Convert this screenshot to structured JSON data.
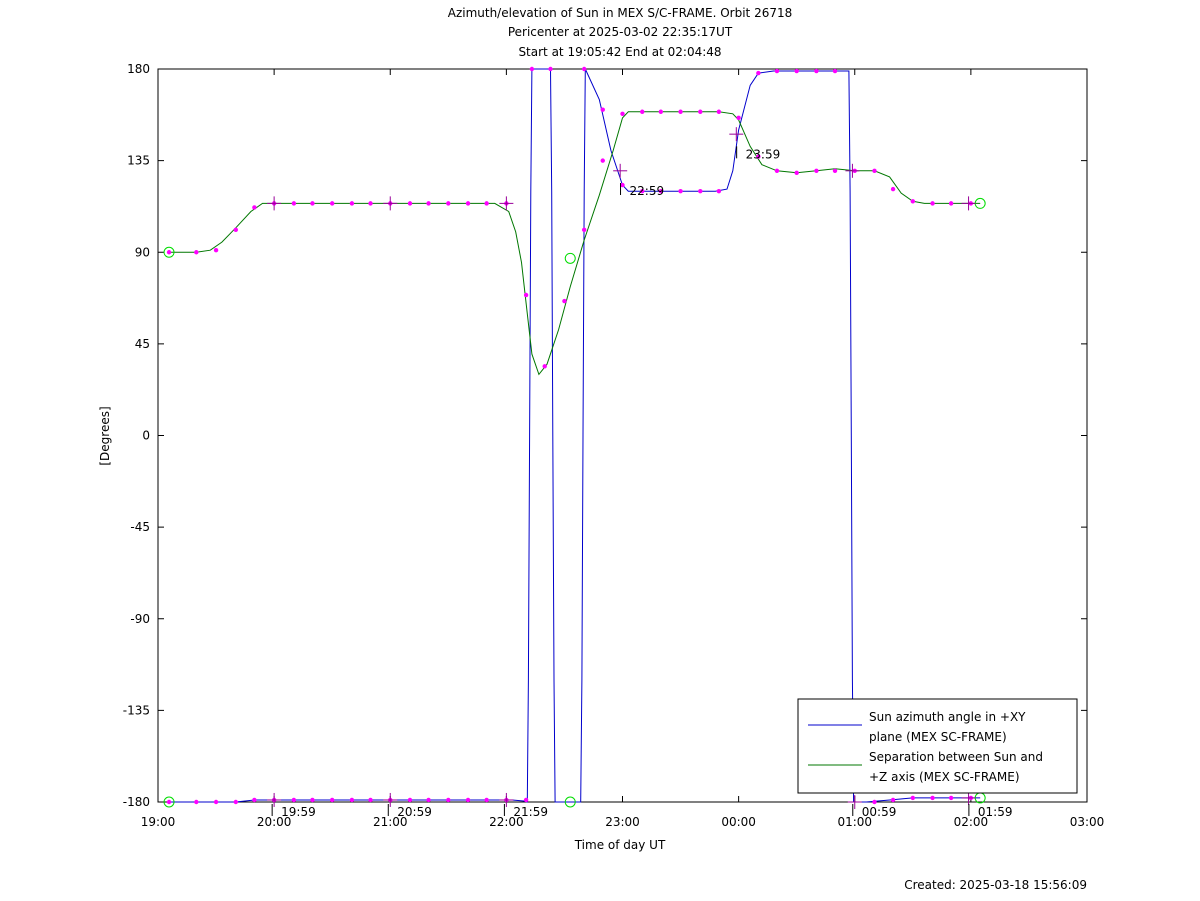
{
  "title_lines": [
    "Azimuth/elevation of Sun in MEX S/C-FRAME.  Orbit 26718",
    "Pericenter at 2025-03-02 22:35:17UT",
    "Start at 19:05:42 End at 02:04:48"
  ],
  "created": "Created: 2025-03-18 15:56:09",
  "chart_data": {
    "type": "line",
    "xlabel": "Time of day UT",
    "ylabel": "[Degrees]",
    "x_unit": "hours since 19:00 UT",
    "xlim": [
      0,
      8
    ],
    "ylim": [
      -180,
      180
    ],
    "grid": false,
    "legend_position": "bottom-right",
    "x_ticks": [
      {
        "x": 0,
        "label": "19:00"
      },
      {
        "x": 1,
        "label": "20:00"
      },
      {
        "x": 2,
        "label": "21:00"
      },
      {
        "x": 3,
        "label": "22:00"
      },
      {
        "x": 4,
        "label": "23:00"
      },
      {
        "x": 5,
        "label": "00:00"
      },
      {
        "x": 6,
        "label": "01:00"
      },
      {
        "x": 7,
        "label": "02:00"
      },
      {
        "x": 8,
        "label": "03:00"
      }
    ],
    "y_ticks": [
      {
        "y": 180,
        "label": "180"
      },
      {
        "y": 135,
        "label": "135"
      },
      {
        "y": 90,
        "label": "90"
      },
      {
        "y": 45,
        "label": "45"
      },
      {
        "y": 0,
        "label": "0"
      },
      {
        "y": -45,
        "label": "-45"
      },
      {
        "y": -90,
        "label": "-90"
      },
      {
        "y": -135,
        "label": "-135"
      },
      {
        "y": -180,
        "label": "-180"
      }
    ],
    "series": [
      {
        "name": "Sun azimuth angle in +XY plane (MEX SC-FRAME)",
        "legend_lines": [
          "Sun azimuth angle in +XY",
          "plane (MEX SC-FRAME)"
        ],
        "color": "#0000cc",
        "points": [
          [
            0.095,
            -180
          ],
          [
            0.33,
            -180
          ],
          [
            0.5,
            -180
          ],
          [
            0.67,
            -180
          ],
          [
            0.83,
            -179
          ],
          [
            1.0,
            -179
          ],
          [
            1.5,
            -179
          ],
          [
            2.0,
            -179
          ],
          [
            2.5,
            -179
          ],
          [
            2.9,
            -179
          ],
          [
            3.05,
            -179
          ],
          [
            3.15,
            -179.5
          ],
          [
            3.18,
            -180
          ],
          [
            3.19,
            -120
          ],
          [
            3.2,
            0
          ],
          [
            3.21,
            120
          ],
          [
            3.22,
            180
          ],
          [
            3.38,
            180
          ],
          [
            3.39,
            120
          ],
          [
            3.4,
            0
          ],
          [
            3.41,
            -120
          ],
          [
            3.42,
            -180
          ],
          [
            3.64,
            -180
          ],
          [
            3.65,
            -120
          ],
          [
            3.66,
            0
          ],
          [
            3.67,
            120
          ],
          [
            3.68,
            180
          ],
          [
            3.8,
            165
          ],
          [
            3.9,
            140
          ],
          [
            4.0,
            123
          ],
          [
            4.05,
            120
          ],
          [
            4.2,
            120
          ],
          [
            4.5,
            120
          ],
          [
            4.8,
            120
          ],
          [
            4.9,
            121
          ],
          [
            4.95,
            130
          ],
          [
            5.0,
            150
          ],
          [
            5.1,
            172
          ],
          [
            5.17,
            178
          ],
          [
            5.3,
            179
          ],
          [
            5.5,
            179
          ],
          [
            5.8,
            179
          ],
          [
            5.95,
            179
          ],
          [
            5.96,
            120
          ],
          [
            5.97,
            0
          ],
          [
            5.98,
            -120
          ],
          [
            5.99,
            -180
          ],
          [
            6.1,
            -180
          ],
          [
            6.3,
            -179
          ],
          [
            6.5,
            -178
          ],
          [
            6.7,
            -178
          ],
          [
            6.9,
            -178
          ],
          [
            7.08,
            -178
          ]
        ],
        "markers": [
          [
            0.095,
            -180
          ],
          [
            0.33,
            -180
          ],
          [
            0.5,
            -180
          ],
          [
            0.67,
            -180
          ],
          [
            0.83,
            -179
          ],
          [
            1.0,
            -179
          ],
          [
            1.17,
            -179
          ],
          [
            1.33,
            -179
          ],
          [
            1.5,
            -179
          ],
          [
            1.67,
            -179
          ],
          [
            1.83,
            -179
          ],
          [
            2.0,
            -179
          ],
          [
            2.17,
            -179
          ],
          [
            2.33,
            -179
          ],
          [
            2.5,
            -179
          ],
          [
            2.67,
            -179
          ],
          [
            2.83,
            -179
          ],
          [
            3.0,
            -179
          ],
          [
            3.17,
            -179
          ],
          [
            3.22,
            180
          ],
          [
            3.38,
            180
          ],
          [
            3.67,
            180
          ],
          [
            3.83,
            160
          ],
          [
            4.0,
            123
          ],
          [
            4.17,
            120
          ],
          [
            4.33,
            120
          ],
          [
            4.5,
            120
          ],
          [
            4.67,
            120
          ],
          [
            4.83,
            120
          ],
          [
            5.17,
            178
          ],
          [
            5.33,
            179
          ],
          [
            5.5,
            179
          ],
          [
            5.67,
            179
          ],
          [
            5.83,
            179
          ],
          [
            6.17,
            -180
          ],
          [
            6.33,
            -179
          ],
          [
            6.5,
            -178
          ],
          [
            6.67,
            -178
          ],
          [
            6.83,
            -178
          ],
          [
            7.0,
            -178
          ]
        ],
        "start_end": [
          [
            0.095,
            -180
          ],
          [
            3.55,
            -180
          ],
          [
            7.08,
            -178
          ]
        ]
      },
      {
        "name": "Separation between Sun and +Z axis (MEX SC-FRAME)",
        "legend_lines": [
          "Separation between Sun and",
          "+Z axis (MEX SC-FRAME)"
        ],
        "color": "#007700",
        "points": [
          [
            0.095,
            90
          ],
          [
            0.2,
            90
          ],
          [
            0.33,
            90
          ],
          [
            0.45,
            91
          ],
          [
            0.55,
            95
          ],
          [
            0.67,
            102
          ],
          [
            0.8,
            110
          ],
          [
            0.9,
            114
          ],
          [
            1.0,
            114
          ],
          [
            1.5,
            114
          ],
          [
            2.0,
            114
          ],
          [
            2.5,
            114
          ],
          [
            2.9,
            114
          ],
          [
            3.02,
            110
          ],
          [
            3.08,
            100
          ],
          [
            3.13,
            85
          ],
          [
            3.17,
            65
          ],
          [
            3.22,
            40
          ],
          [
            3.28,
            30
          ],
          [
            3.35,
            35
          ],
          [
            3.45,
            52
          ],
          [
            3.55,
            73
          ],
          [
            3.67,
            96
          ],
          [
            3.8,
            118
          ],
          [
            3.92,
            140
          ],
          [
            4.0,
            156
          ],
          [
            4.05,
            159
          ],
          [
            4.2,
            159
          ],
          [
            4.5,
            159
          ],
          [
            4.83,
            159
          ],
          [
            4.95,
            158
          ],
          [
            5.0,
            155
          ],
          [
            5.1,
            142
          ],
          [
            5.2,
            133
          ],
          [
            5.33,
            130
          ],
          [
            5.5,
            129
          ],
          [
            5.67,
            130
          ],
          [
            5.83,
            131
          ],
          [
            6.0,
            130
          ],
          [
            6.17,
            130
          ],
          [
            6.3,
            127
          ],
          [
            6.4,
            119
          ],
          [
            6.5,
            115
          ],
          [
            6.6,
            114
          ],
          [
            6.83,
            114
          ],
          [
            7.08,
            114
          ]
        ],
        "markers": [
          [
            0.095,
            90
          ],
          [
            0.33,
            90
          ],
          [
            0.5,
            91
          ],
          [
            0.67,
            101
          ],
          [
            0.83,
            112
          ],
          [
            1.0,
            114
          ],
          [
            1.17,
            114
          ],
          [
            1.33,
            114
          ],
          [
            1.5,
            114
          ],
          [
            1.67,
            114
          ],
          [
            1.83,
            114
          ],
          [
            2.0,
            114
          ],
          [
            2.17,
            114
          ],
          [
            2.33,
            114
          ],
          [
            2.5,
            114
          ],
          [
            2.67,
            114
          ],
          [
            2.83,
            114
          ],
          [
            3.0,
            114
          ],
          [
            3.17,
            69
          ],
          [
            3.33,
            34
          ],
          [
            3.5,
            66
          ],
          [
            3.67,
            101
          ],
          [
            3.83,
            135
          ],
          [
            4.0,
            158
          ],
          [
            4.17,
            159
          ],
          [
            4.33,
            159
          ],
          [
            4.5,
            159
          ],
          [
            4.67,
            159
          ],
          [
            4.83,
            159
          ],
          [
            5.0,
            156
          ],
          [
            5.17,
            137
          ],
          [
            5.33,
            130
          ],
          [
            5.5,
            129
          ],
          [
            5.67,
            130
          ],
          [
            5.83,
            130
          ],
          [
            6.0,
            130
          ],
          [
            6.17,
            130
          ],
          [
            6.33,
            121
          ],
          [
            6.5,
            115
          ],
          [
            6.67,
            114
          ],
          [
            6.83,
            114
          ],
          [
            7.0,
            114
          ]
        ],
        "start_end": [
          [
            0.095,
            90
          ],
          [
            3.55,
            87
          ],
          [
            7.08,
            114
          ]
        ]
      }
    ],
    "hour_ticks": [
      {
        "x": 1.0,
        "y": -179
      },
      {
        "x": 2.0,
        "y": -179
      },
      {
        "x": 3.0,
        "y": -179
      },
      {
        "x": 6.0,
        "y": -180
      },
      {
        "x": 6.98,
        "y": -178
      },
      {
        "x": 1.0,
        "y": 114
      },
      {
        "x": 2.0,
        "y": 114
      },
      {
        "x": 3.0,
        "y": 114
      },
      {
        "x": 3.98,
        "y": 130
      },
      {
        "x": 4.98,
        "y": 148
      },
      {
        "x": 5.98,
        "y": 130
      },
      {
        "x": 6.98,
        "y": 114
      }
    ],
    "annotations": [
      {
        "label": "19:59",
        "x": 0.983,
        "y": -180
      },
      {
        "label": "20:59",
        "x": 1.983,
        "y": -180
      },
      {
        "label": "21:59",
        "x": 2.983,
        "y": -180
      },
      {
        "label": "22:59",
        "x": 3.983,
        "y": 125
      },
      {
        "label": "23:59",
        "x": 4.983,
        "y": 143
      },
      {
        "label": "00:59",
        "x": 5.983,
        "y": -180
      },
      {
        "label": "01:59",
        "x": 6.983,
        "y": -180
      }
    ]
  }
}
